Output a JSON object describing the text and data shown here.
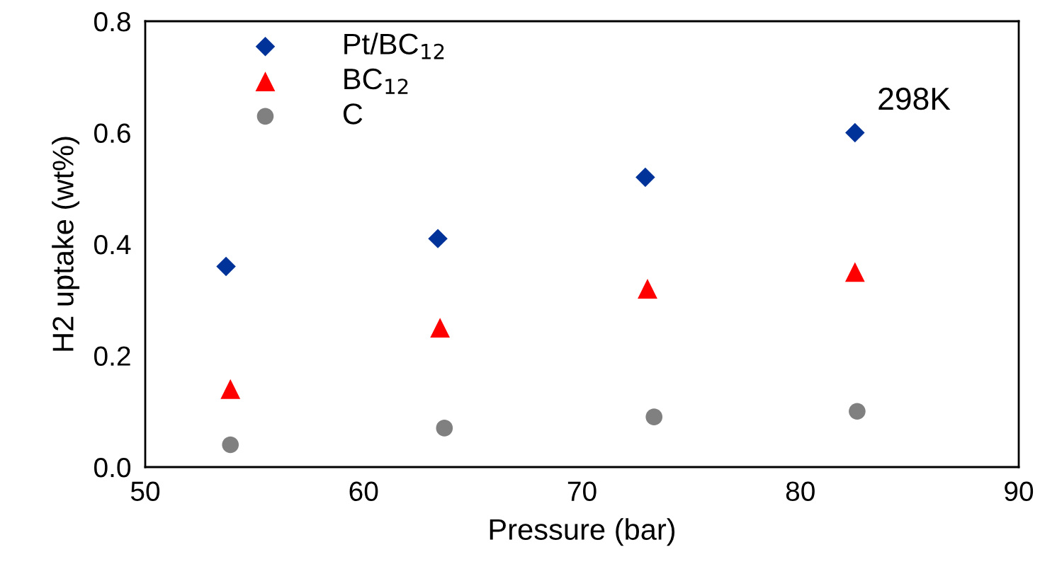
{
  "chart_data": {
    "type": "scatter",
    "xlabel": "Pressure (bar)",
    "ylabel": "H2 uptake (wt%)",
    "xlim": [
      50,
      90
    ],
    "xticks": [
      50,
      60,
      70,
      80,
      90
    ],
    "ylim": [
      0,
      0.8
    ],
    "yticks": [
      {
        "value": 0,
        "label": "0.0"
      },
      0.2,
      0.4,
      0.6,
      0.8
    ],
    "grid": false,
    "legend": "top left",
    "annotations": [
      "298K"
    ],
    "series": [
      {
        "name": "Pt/BC$_{12}$",
        "color": "#003399",
        "marker": "diamond",
        "x": [
          53.7,
          63.4,
          72.9,
          82.5
        ],
        "values": [
          0.36,
          0.41,
          0.52,
          0.6
        ]
      },
      {
        "name": "BC$_{12}$",
        "color": "#ff0000",
        "marker": "triangle",
        "x": [
          53.9,
          63.5,
          73.0,
          82.5
        ],
        "values": [
          0.14,
          0.25,
          0.32,
          0.35
        ]
      },
      {
        "name": "C",
        "color": "#808080",
        "marker": "circle",
        "x": [
          53.9,
          63.7,
          73.3,
          82.6
        ],
        "values": [
          0.04,
          0.07,
          0.09,
          0.1
        ]
      }
    ]
  }
}
